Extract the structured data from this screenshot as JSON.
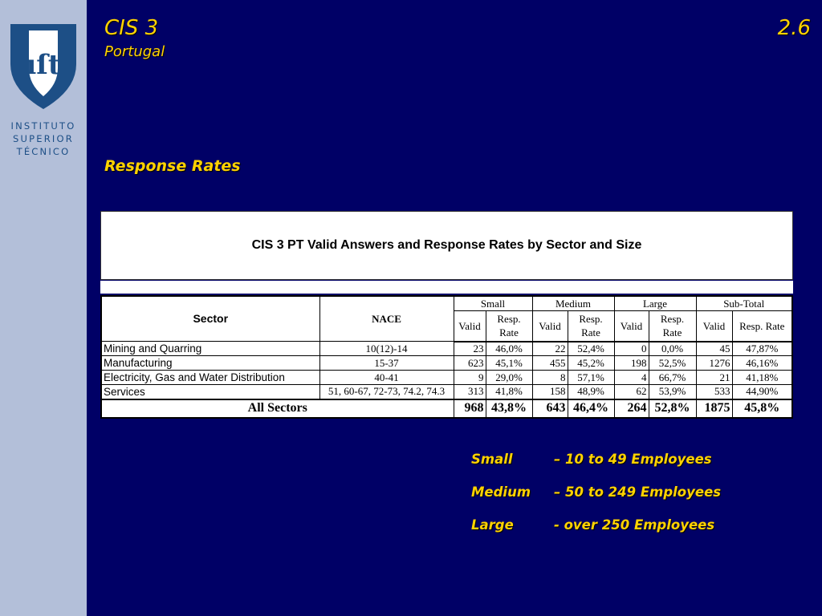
{
  "logo": {
    "line1": "INSTITUTO",
    "line2": "SUPERIOR",
    "line3": "TÉCNICO",
    "mark": "IST"
  },
  "header": {
    "title": "CIS 3",
    "subtitle": "Portugal",
    "slide_number": "2.6"
  },
  "section_title": "Response Rates",
  "table": {
    "caption": "CIS 3 PT Valid Answers and Response Rates by Sector and Size",
    "headers": {
      "sector": "Sector",
      "nace": "NACE",
      "groups": [
        "Small",
        "Medium",
        "Large",
        "Sub-Total"
      ],
      "valid": "Valid",
      "rate": "Resp. Rate"
    },
    "rows": [
      {
        "sector": "Mining and Quarring",
        "nace": "10(12)-14",
        "values": [
          "23",
          "46,0%",
          "22",
          "52,4%",
          "0",
          "0,0%",
          "45",
          "47,87%"
        ]
      },
      {
        "sector": "Manufacturing",
        "nace": "15-37",
        "values": [
          "623",
          "45,1%",
          "455",
          "45,2%",
          "198",
          "52,5%",
          "1276",
          "46,16%"
        ]
      },
      {
        "sector": "Electricity, Gas and Water Distribution",
        "nace": "40-41",
        "values": [
          "9",
          "29,0%",
          "8",
          "57,1%",
          "4",
          "66,7%",
          "21",
          "41,18%"
        ]
      },
      {
        "sector": "Services",
        "nace": "51, 60-67, 72-73, 74.2, 74.3",
        "values": [
          "313",
          "41,8%",
          "158",
          "48,9%",
          "62",
          "53,9%",
          "533",
          "44,90%"
        ]
      }
    ],
    "total": {
      "label": "All Sectors",
      "values": [
        "968",
        "43,8%",
        "643",
        "46,4%",
        "264",
        "52,8%",
        "1875",
        "45,8%"
      ]
    }
  },
  "legend": [
    {
      "term": "Small",
      "desc": "– 10 to 49 Employees"
    },
    {
      "term": "Medium",
      "desc": "– 50 to 249 Employees"
    },
    {
      "term": "Large",
      "desc": "- over 250 Employees"
    }
  ]
}
